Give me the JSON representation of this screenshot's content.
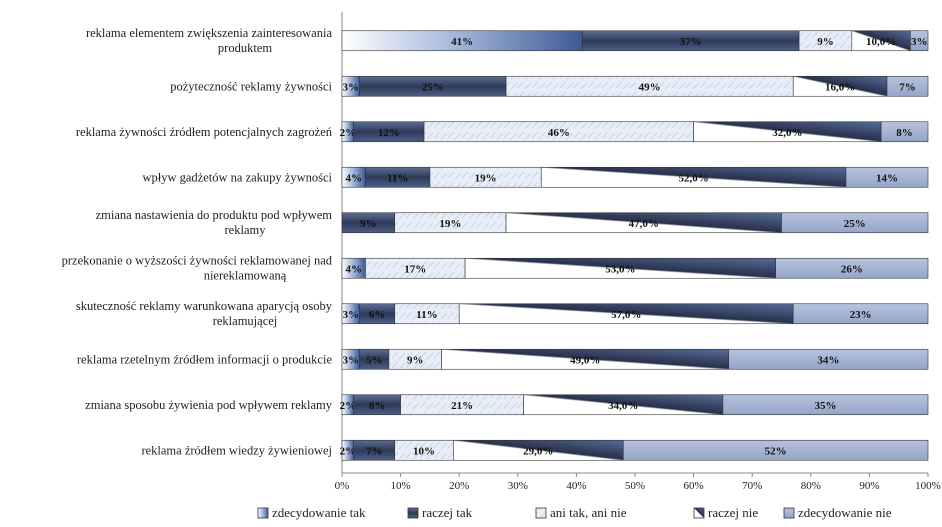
{
  "chart_data": {
    "type": "bar",
    "orientation": "horizontal",
    "stacked": "percent",
    "categories": [
      [
        "reklama elementem zwiększenia zainteresowania",
        "produktem"
      ],
      [
        "pożyteczność reklamy żywności"
      ],
      [
        "reklama żywności źródłem potencjalnych zagrożeń"
      ],
      [
        "wpływ gadżetów na zakupy żywności"
      ],
      [
        "zmiana nastawienia do produktu pod wpływem",
        "reklamy"
      ],
      [
        "przekonanie o wyższości żywności reklamowanej nad",
        "niereklamowaną"
      ],
      [
        "skuteczność reklamy warunkowana aparycją osoby",
        "reklamującej"
      ],
      [
        "reklama rzetelnym źródłem informacji o produkcie"
      ],
      [
        "zmiana sposobu żywienia pod wpływem reklamy"
      ],
      [
        "reklama źródłem wiedzy żywieniowej"
      ]
    ],
    "series": [
      {
        "name": "zdecydowanie tak",
        "color": "#c9d6ec",
        "values": [
          41,
          3,
          2,
          4,
          0,
          4,
          3,
          3,
          2,
          2
        ],
        "labels": [
          "41%",
          "3%",
          "2%",
          "4%",
          "",
          "4%",
          "3%",
          "3%",
          "2%",
          "2%"
        ]
      },
      {
        "name": "raczej tak",
        "color": "#4a5a80",
        "values": [
          37,
          25,
          12,
          11,
          9,
          0,
          6,
          5,
          8,
          7
        ],
        "labels": [
          "37%",
          "25%",
          "12%",
          "11%",
          "9%",
          "",
          "6%",
          "5%",
          "8%",
          "7%"
        ]
      },
      {
        "name": "ani tak, ani nie",
        "color": "#e2eaf6",
        "values": [
          9,
          49,
          46,
          19,
          19,
          17,
          11,
          9,
          21,
          10
        ],
        "labels": [
          "9%",
          "49%",
          "46%",
          "19%",
          "19%",
          "17%",
          "11%",
          "9%",
          "21%",
          "10%"
        ]
      },
      {
        "name": "raczej nie",
        "color": "#6a7ca8",
        "values": [
          10,
          16,
          32,
          52,
          47,
          53,
          57,
          49,
          34,
          29
        ],
        "labels": [
          "10,0%",
          "16,0%",
          "32,0%",
          "52,0%",
          "47,0%",
          "53,0%",
          "57,0%",
          "49,0%",
          "34,0%",
          "29,0%"
        ]
      },
      {
        "name": "zdecydowanie nie",
        "color": "#a4b2d0",
        "values": [
          3,
          7,
          8,
          14,
          25,
          26,
          23,
          34,
          35,
          52
        ],
        "labels": [
          "3%",
          "7%",
          "8%",
          "14%",
          "25%",
          "26%",
          "23%",
          "34%",
          "35%",
          "52%"
        ]
      }
    ],
    "xlim": [
      0,
      100
    ],
    "xticks": [
      "0%",
      "10%",
      "20%",
      "30%",
      "40%",
      "50%",
      "60%",
      "70%",
      "80%",
      "90%",
      "100%"
    ],
    "legend_position": "bottom",
    "grid": false
  }
}
